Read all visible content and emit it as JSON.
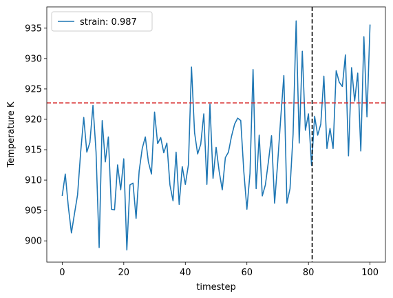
{
  "chart_data": {
    "type": "line",
    "title": "",
    "xlabel": "timestep",
    "ylabel": "Temperature K",
    "xlim": [
      -5,
      105
    ],
    "ylim": [
      896.5,
      938.5
    ],
    "xticks": [
      0,
      20,
      40,
      60,
      80,
      100
    ],
    "yticks": [
      900,
      905,
      910,
      915,
      920,
      925,
      930,
      935
    ],
    "grid": false,
    "legend_position": "top-left",
    "colors": {
      "series": "#1f77b4",
      "hline": "#d62728",
      "vline": "#000000"
    },
    "series": [
      {
        "name": "strain: 0.987",
        "x": [
          0,
          1,
          2,
          3,
          4,
          5,
          6,
          7,
          8,
          9,
          10,
          11,
          12,
          13,
          14,
          15,
          16,
          17,
          18,
          19,
          20,
          21,
          22,
          23,
          24,
          25,
          26,
          27,
          28,
          29,
          30,
          31,
          32,
          33,
          34,
          35,
          36,
          37,
          38,
          39,
          40,
          41,
          42,
          43,
          44,
          45,
          46,
          47,
          48,
          49,
          50,
          51,
          52,
          53,
          54,
          55,
          56,
          57,
          58,
          59,
          60,
          61,
          62,
          63,
          64,
          65,
          66,
          67,
          68,
          69,
          70,
          71,
          72,
          73,
          74,
          75,
          76,
          77,
          78,
          79,
          80,
          81,
          82,
          83,
          84,
          85,
          86,
          87,
          88,
          89,
          90,
          91,
          92,
          93,
          94,
          95,
          96,
          97,
          98,
          99,
          100
        ],
        "y": [
          907.4,
          911.0,
          905.6,
          901.3,
          904.5,
          907.6,
          914.6,
          920.3,
          914.6,
          916.2,
          922.3,
          914.6,
          898.9,
          919.8,
          913.0,
          917.1,
          905.2,
          905.1,
          912.5,
          908.4,
          913.5,
          898.5,
          909.2,
          909.5,
          903.7,
          911.5,
          915.2,
          917.1,
          913.0,
          911.0,
          921.2,
          916.0,
          917.0,
          914.5,
          916.1,
          909.2,
          906.6,
          914.6,
          906.0,
          912.2,
          909.3,
          912.5,
          928.6,
          917.8,
          914.3,
          915.9,
          920.9,
          909.3,
          922.5,
          910.3,
          915.4,
          911.4,
          908.4,
          913.7,
          914.6,
          917.2,
          919.2,
          920.2,
          919.8,
          911.4,
          905.2,
          911.1,
          928.2,
          908.6,
          917.4,
          907.4,
          909.2,
          913.1,
          917.3,
          906.2,
          912.9,
          920.3,
          927.2,
          906.2,
          908.6,
          917.5,
          936.2,
          916.1,
          931.2,
          918.2,
          920.9,
          912.4,
          920.5,
          917.4,
          919.2,
          927.1,
          915.2,
          918.5,
          915.2,
          928.0,
          926.1,
          925.4,
          930.6,
          914.0,
          928.5,
          923.0,
          927.6,
          914.8,
          933.6,
          920.4,
          935.6
        ]
      }
    ],
    "reference_lines": [
      {
        "orientation": "horizontal",
        "value": 922.7,
        "style": "dashed",
        "color": "#d62728"
      },
      {
        "orientation": "vertical",
        "value": 81.2,
        "style": "dashed",
        "color": "#000000"
      }
    ]
  }
}
